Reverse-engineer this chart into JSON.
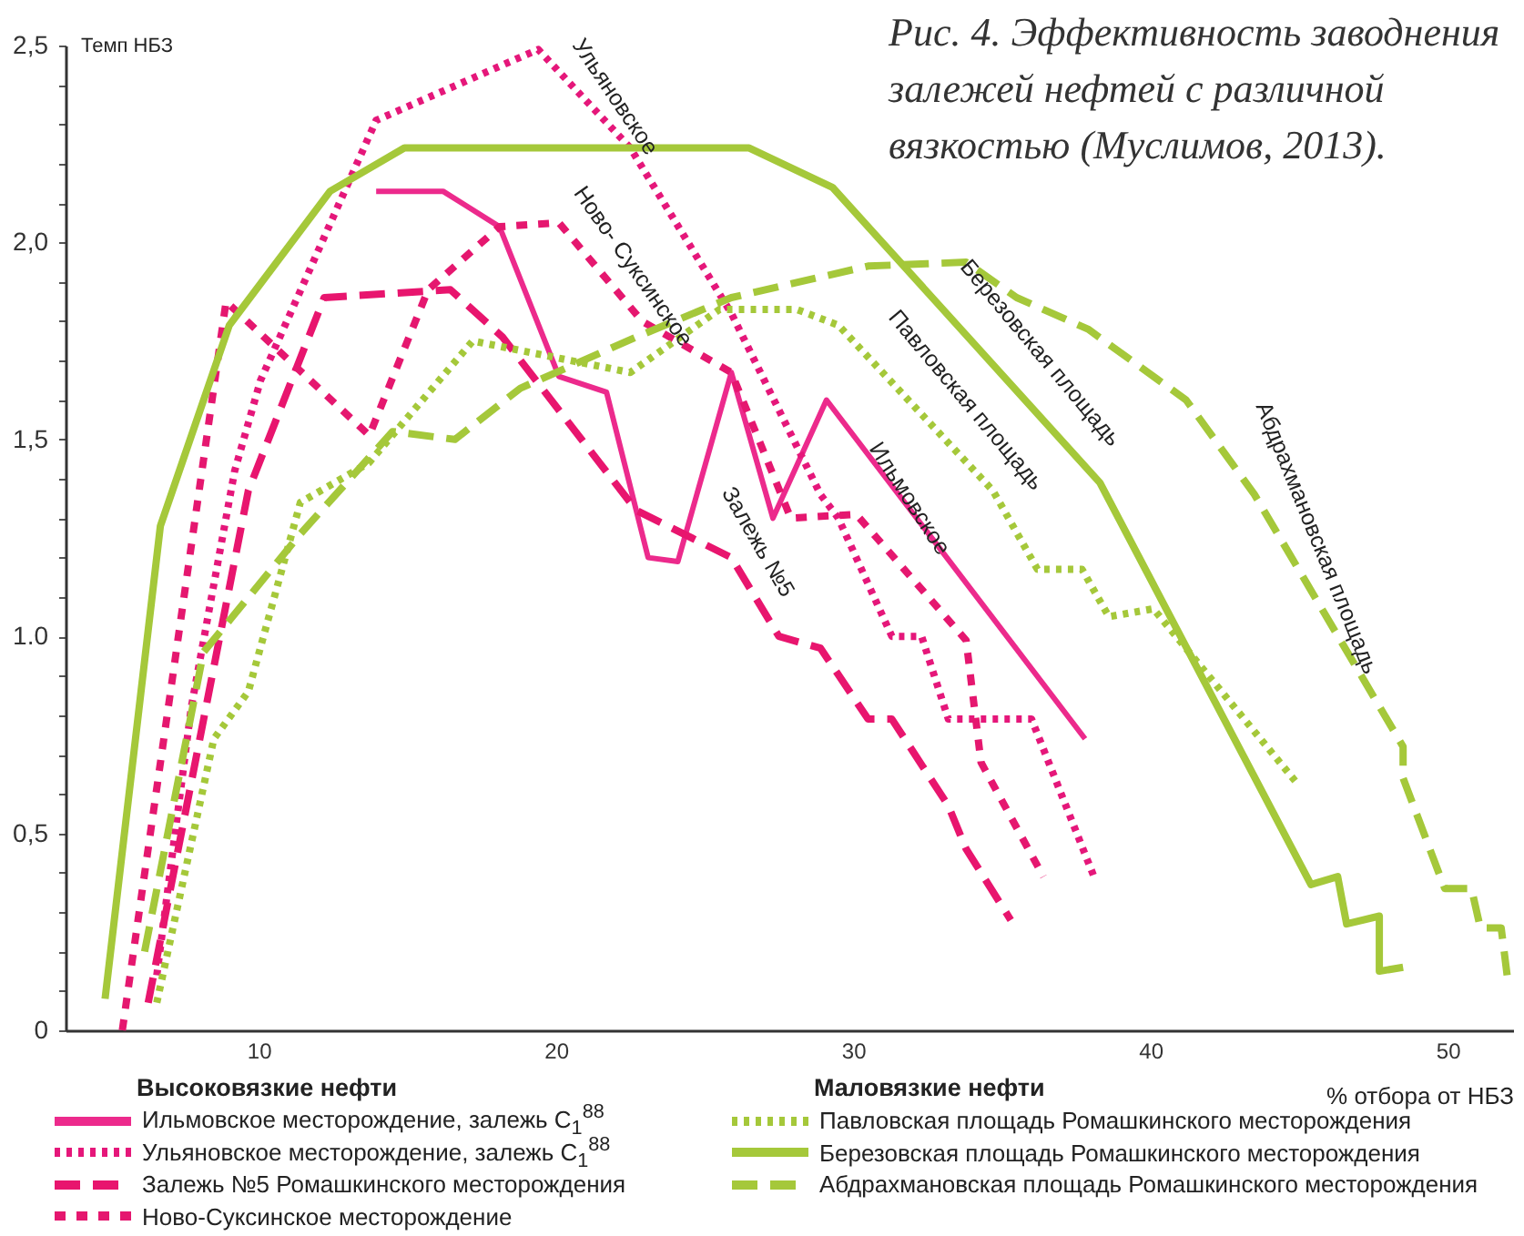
{
  "chart_data": {
    "type": "line",
    "title": "Рис. 4. Эффективность заводнения залежей нефтей с различной вязкостью (Муслимов, 2013).",
    "xlabel": "% отбора от НБЗ",
    "ylabel": "Темп НБЗ",
    "xlim": [
      3.5,
      52.2
    ],
    "ylim": [
      0,
      2.5
    ],
    "xticks": [
      10,
      20,
      30,
      40,
      50
    ],
    "yticks": [
      0,
      {
        "value": 0.1,
        "label": null
      },
      {
        "value": 0.2,
        "label": null
      },
      {
        "value": 0.3,
        "label": null
      },
      {
        "value": 0.4,
        "label": null
      },
      {
        "value": 0.5,
        "label": "0,5"
      },
      {
        "value": 0.6,
        "label": null
      },
      {
        "value": 0.7,
        "label": null
      },
      {
        "value": 0.8,
        "label": null
      },
      {
        "value": 0.9,
        "label": null
      },
      {
        "value": 1,
        "label": "1.0"
      },
      {
        "value": 1.1,
        "label": null
      },
      {
        "value": 1.2,
        "label": null
      },
      {
        "value": 1.3,
        "label": null
      },
      {
        "value": 1.4,
        "label": null
      },
      {
        "value": 1.5,
        "label": "1,5"
      },
      {
        "value": 1.6,
        "label": null
      },
      {
        "value": 1.7,
        "label": null
      },
      {
        "value": 1.8,
        "label": null
      },
      {
        "value": 1.9,
        "label": null
      },
      {
        "value": 2,
        "label": "2,0"
      },
      {
        "value": 2.1,
        "label": null
      },
      {
        "value": 2.2,
        "label": null
      },
      {
        "value": 2.3,
        "label": null
      },
      {
        "value": 2.4,
        "label": null
      },
      {
        "value": 2.5,
        "label": "2,5"
      }
    ],
    "grid": false,
    "legend": "bottom",
    "marker": "none",
    "series": [
      {
        "name": "Ильмовское месторождение, залежь С$_{1}$$^{88}$",
        "color": "#ec2a8c",
        "line_style": "solid",
        "x": [
          13.95,
          16.2,
          18.1,
          20.1,
          21.7,
          23.1,
          24.1,
          25.9,
          27.3,
          29.1,
          37.8
        ],
        "values": [
          2.13,
          2.13,
          2.04,
          1.66,
          1.62,
          1.2,
          1.19,
          1.67,
          1.3,
          1.6,
          0.74
        ]
      },
      {
        "name": "Ульяновское месторождение, залежь С$_{1}$$^{88}$",
        "color": "#e5177a",
        "line_style": "dotted",
        "x": [
          6.57,
          7.73,
          9.19,
          10.06,
          13.95,
          19.4,
          22.5,
          25.9,
          28.9,
          29.5,
          31.3,
          32.3,
          33.2,
          36.0,
          38.1
        ],
        "values": [
          0.14,
          0.82,
          1.42,
          1.65,
          2.31,
          2.49,
          2.24,
          1.82,
          1.36,
          1.3,
          1.0,
          1.0,
          0.79,
          0.79,
          0.39
        ]
      },
      {
        "name": "Залежь №5 Ромашкинского месторождения",
        "color": "#e8156e",
        "line_style": "dashed",
        "x": [
          6.28,
          9.65,
          12.2,
          16.45,
          18.2,
          22.7,
          25.9,
          27.5,
          28.9,
          30.5,
          31.3,
          33.2,
          33.8,
          35.3
        ],
        "values": [
          0.07,
          1.37,
          1.86,
          1.88,
          1.76,
          1.32,
          1.2,
          1.0,
          0.97,
          0.79,
          0.79,
          0.57,
          0.46,
          0.28
        ]
      },
      {
        "name": "Ново-Суксинское месторождение",
        "color": "#e5176f",
        "line_style": "dashed",
        "x": [
          5.41,
          8.9,
          13.72,
          15.7,
          18.1,
          20.1,
          22.9,
          25.9,
          27.9,
          30.1,
          33.8,
          34.3,
          36.4
        ],
        "values": [
          0,
          1.85,
          1.51,
          1.88,
          2.04,
          2.05,
          1.8,
          1.67,
          1.3,
          1.31,
          0.99,
          0.68,
          0.39
        ]
      },
      {
        "name": "Павловская площадь Ромашкинского месторождения",
        "color": "#a5c83a",
        "line_style": "dotted",
        "x": [
          6.57,
          8.49,
          9.65,
          11.4,
          13.7,
          17.2,
          22.5,
          25.5,
          28.1,
          29.5,
          34.7,
          36.2,
          37.7,
          38.6,
          40.1,
          44.9
        ],
        "values": [
          0.07,
          0.74,
          0.86,
          1.34,
          1.44,
          1.75,
          1.67,
          1.83,
          1.83,
          1.79,
          1.37,
          1.17,
          1.17,
          1.05,
          1.07,
          0.63
        ]
      },
      {
        "name": "Березовская площадь Ромашкинского месторождения",
        "color": "#a5c83a",
        "line_style": "solid",
        "x": [
          4.83,
          6.69,
          9.01,
          12.4,
          14.9,
          26.5,
          29.3,
          38.3,
          45.4,
          46.3,
          46.6,
          47.7,
          47.7,
          48.5
        ],
        "values": [
          0.08,
          1.28,
          1.79,
          2.13,
          2.24,
          2.24,
          2.14,
          1.39,
          0.37,
          0.39,
          0.27,
          0.29,
          0.15,
          0.16
        ]
      },
      {
        "name": "Абдрахмановская площадь Ромашкинского месторождения",
        "color": "#a5c83a",
        "line_style": "dashed",
        "x": [
          6.16,
          8.14,
          11.4,
          14.5,
          16.6,
          18.8,
          22.7,
          25.9,
          30.5,
          33.8,
          35.5,
          37.9,
          41.2,
          43.5,
          48.5,
          48.5,
          49.9,
          50.8,
          51.1,
          51.8,
          52.0
        ],
        "values": [
          0.2,
          0.96,
          1.26,
          1.52,
          1.5,
          1.63,
          1.76,
          1.86,
          1.94,
          1.95,
          1.86,
          1.78,
          1.6,
          1.36,
          0.72,
          0.64,
          0.36,
          0.36,
          0.26,
          0.26,
          0.14
        ]
      }
    ],
    "annotations": [
      "Ульяновское",
      "Ново- Суксинское",
      "Залежь №5",
      "Ильмовское",
      "Павловская площадь",
      "Березовская площадь",
      "Абдрахмановская площадь",
      "Высоковязкие нефти",
      "Маловязкие нефти"
    ]
  }
}
